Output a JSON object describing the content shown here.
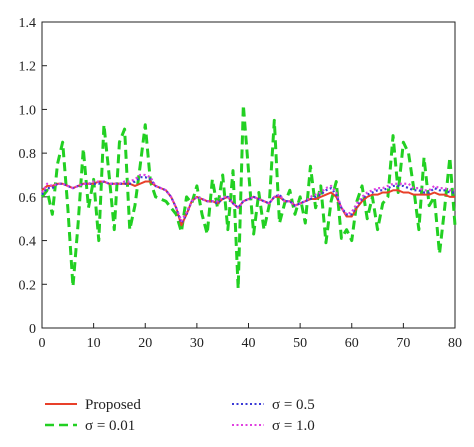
{
  "chart_data": {
    "type": "line",
    "title": "",
    "xlabel": "",
    "ylabel": "",
    "xlim": [
      0,
      80
    ],
    "ylim": [
      0,
      1.4
    ],
    "xticks": [
      0,
      10,
      20,
      30,
      40,
      50,
      60,
      70,
      80
    ],
    "yticks": [
      0,
      0.2,
      0.4,
      0.6,
      0.8,
      1.0,
      1.2,
      1.4
    ],
    "xtick_labels": [
      "0",
      "10",
      "20",
      "30",
      "40",
      "50",
      "60",
      "70",
      "80"
    ],
    "ytick_labels": [
      "0",
      "0.2",
      "0.4",
      "0.6",
      "0.8",
      "1.0",
      "1.2",
      "1.4"
    ],
    "grid": false,
    "legend_position": "bottom",
    "x": [
      0,
      1,
      2,
      3,
      4,
      5,
      6,
      7,
      8,
      9,
      10,
      11,
      12,
      13,
      14,
      15,
      16,
      17,
      18,
      19,
      20,
      21,
      22,
      23,
      24,
      25,
      26,
      27,
      28,
      29,
      30,
      31,
      32,
      33,
      34,
      35,
      36,
      37,
      38,
      39,
      40,
      41,
      42,
      43,
      44,
      45,
      46,
      47,
      48,
      49,
      50,
      51,
      52,
      53,
      54,
      55,
      56,
      57,
      58,
      59,
      60,
      61,
      62,
      63,
      64,
      65,
      66,
      67,
      68,
      69,
      70,
      71,
      72,
      73,
      74,
      75,
      76,
      77,
      78,
      79,
      80
    ],
    "series": [
      {
        "name": "Proposed",
        "color": "#e8402a",
        "dash": "solid",
        "values": [
          0.63,
          0.65,
          0.65,
          0.66,
          0.66,
          0.65,
          0.64,
          0.65,
          0.66,
          0.66,
          0.66,
          0.67,
          0.67,
          0.66,
          0.66,
          0.66,
          0.66,
          0.66,
          0.65,
          0.66,
          0.67,
          0.67,
          0.65,
          0.64,
          0.63,
          0.6,
          0.55,
          0.47,
          0.52,
          0.58,
          0.6,
          0.59,
          0.58,
          0.58,
          0.57,
          0.59,
          0.6,
          0.57,
          0.55,
          0.58,
          0.59,
          0.6,
          0.59,
          0.58,
          0.57,
          0.6,
          0.6,
          0.58,
          0.58,
          0.56,
          0.57,
          0.58,
          0.59,
          0.59,
          0.6,
          0.61,
          0.62,
          0.6,
          0.55,
          0.51,
          0.51,
          0.55,
          0.58,
          0.6,
          0.61,
          0.61,
          0.62,
          0.62,
          0.63,
          0.63,
          0.62,
          0.62,
          0.61,
          0.61,
          0.61,
          0.61,
          0.62,
          0.61,
          0.61,
          0.6,
          0.6
        ]
      },
      {
        "name": "σ = 0.01",
        "color": "#22d022",
        "dash": "long-dash",
        "values": [
          0.6,
          0.63,
          0.52,
          0.75,
          0.85,
          0.55,
          0.19,
          0.48,
          0.82,
          0.55,
          0.68,
          0.4,
          0.93,
          0.7,
          0.45,
          0.85,
          0.91,
          0.45,
          0.56,
          0.74,
          0.93,
          0.67,
          0.6,
          0.59,
          0.58,
          0.55,
          0.52,
          0.44,
          0.6,
          0.57,
          0.65,
          0.52,
          0.43,
          0.68,
          0.55,
          0.7,
          0.45,
          0.72,
          0.18,
          1.02,
          0.72,
          0.43,
          0.62,
          0.45,
          0.56,
          0.95,
          0.48,
          0.57,
          0.63,
          0.52,
          0.6,
          0.48,
          0.74,
          0.55,
          0.65,
          0.39,
          0.58,
          0.67,
          0.41,
          0.45,
          0.4,
          0.58,
          0.65,
          0.5,
          0.6,
          0.45,
          0.57,
          0.6,
          0.88,
          0.62,
          0.85,
          0.8,
          0.64,
          0.45,
          0.78,
          0.56,
          0.6,
          0.34,
          0.55,
          0.78,
          0.47
        ]
      },
      {
        "name": "σ = 0.5",
        "color": "#3a3ad6",
        "dash": "dot",
        "values": [
          0.61,
          0.64,
          0.64,
          0.66,
          0.66,
          0.65,
          0.64,
          0.65,
          0.66,
          0.66,
          0.66,
          0.66,
          0.67,
          0.66,
          0.66,
          0.66,
          0.66,
          0.66,
          0.67,
          0.69,
          0.69,
          0.68,
          0.65,
          0.64,
          0.63,
          0.6,
          0.55,
          0.48,
          0.52,
          0.58,
          0.6,
          0.59,
          0.58,
          0.58,
          0.57,
          0.59,
          0.6,
          0.57,
          0.55,
          0.58,
          0.59,
          0.6,
          0.59,
          0.58,
          0.57,
          0.6,
          0.61,
          0.58,
          0.58,
          0.56,
          0.57,
          0.58,
          0.59,
          0.6,
          0.61,
          0.63,
          0.64,
          0.61,
          0.55,
          0.52,
          0.52,
          0.56,
          0.59,
          0.61,
          0.62,
          0.63,
          0.63,
          0.64,
          0.65,
          0.65,
          0.65,
          0.64,
          0.63,
          0.63,
          0.62,
          0.62,
          0.64,
          0.63,
          0.63,
          0.62,
          0.62
        ]
      },
      {
        "name": "σ = 1.0",
        "color": "#e040e0",
        "dash": "dot",
        "values": [
          0.62,
          0.66,
          0.65,
          0.66,
          0.66,
          0.65,
          0.64,
          0.65,
          0.66,
          0.66,
          0.67,
          0.67,
          0.67,
          0.66,
          0.66,
          0.66,
          0.67,
          0.67,
          0.68,
          0.7,
          0.7,
          0.69,
          0.65,
          0.64,
          0.63,
          0.6,
          0.55,
          0.49,
          0.53,
          0.58,
          0.6,
          0.59,
          0.58,
          0.58,
          0.58,
          0.6,
          0.6,
          0.57,
          0.55,
          0.58,
          0.59,
          0.6,
          0.59,
          0.58,
          0.57,
          0.6,
          0.61,
          0.58,
          0.58,
          0.56,
          0.57,
          0.58,
          0.6,
          0.61,
          0.62,
          0.64,
          0.65,
          0.62,
          0.55,
          0.52,
          0.53,
          0.57,
          0.6,
          0.62,
          0.63,
          0.64,
          0.64,
          0.65,
          0.66,
          0.66,
          0.66,
          0.66,
          0.64,
          0.64,
          0.63,
          0.63,
          0.65,
          0.64,
          0.64,
          0.63,
          0.63
        ]
      }
    ]
  }
}
